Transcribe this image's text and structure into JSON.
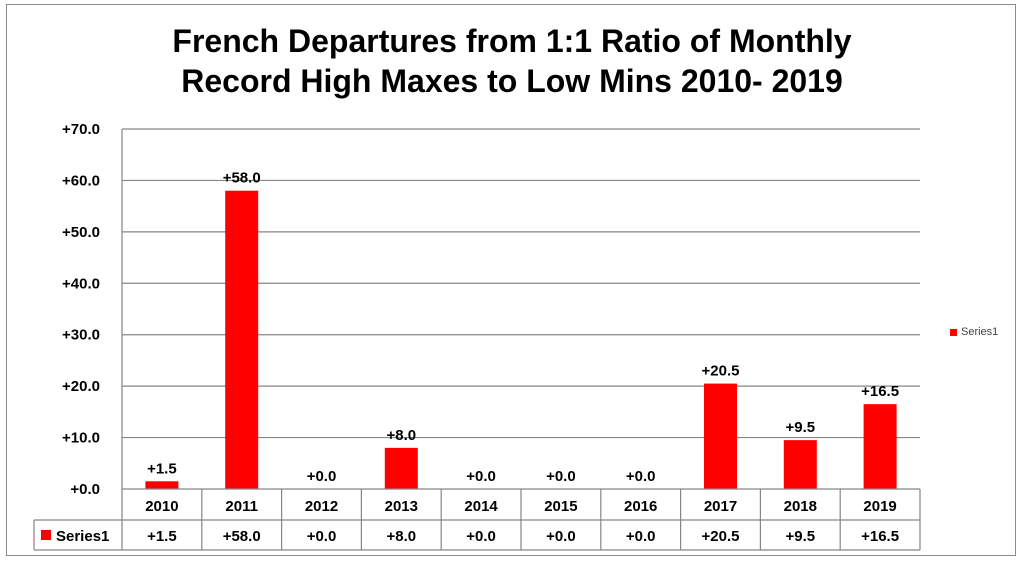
{
  "chart_data": {
    "type": "bar",
    "title_line1": "French Departures from 1:1 Ratio of Monthly",
    "title_line2": "Record High Maxes to Low Mins 2010- 2019",
    "categories": [
      "2010",
      "2011",
      "2012",
      "2013",
      "2014",
      "2015",
      "2016",
      "2017",
      "2018",
      "2019"
    ],
    "series": [
      {
        "name": "Series1",
        "values": [
          1.5,
          58.0,
          0.0,
          8.0,
          0.0,
          0.0,
          0.0,
          20.5,
          9.5,
          16.5
        ],
        "labels": [
          "+1.5",
          "+58.0",
          "+0.0",
          "+8.0",
          "+0.0",
          "+0.0",
          "+0.0",
          "+20.5",
          "+9.5",
          "+16.5"
        ]
      }
    ],
    "ylim": [
      0,
      70
    ],
    "yticks": [
      0,
      10,
      20,
      30,
      40,
      50,
      60,
      70
    ],
    "ytick_labels": [
      "+0.0",
      "+10.0",
      "+20.0",
      "+30.0",
      "+40.0",
      "+50.0",
      "+60.0",
      "+70.0"
    ],
    "grid": true,
    "legend_position": "right",
    "data_table": true,
    "bar_color": "#ff0000",
    "xlabel": "",
    "ylabel": ""
  }
}
